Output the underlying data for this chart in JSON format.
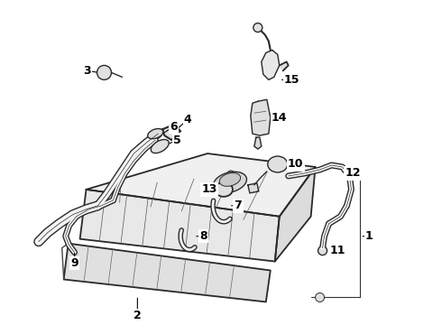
{
  "bg_color": "#ffffff",
  "line_color": "#2a2a2a",
  "figsize": [
    4.9,
    3.6
  ],
  "dpi": 100,
  "lw": 1.0
}
